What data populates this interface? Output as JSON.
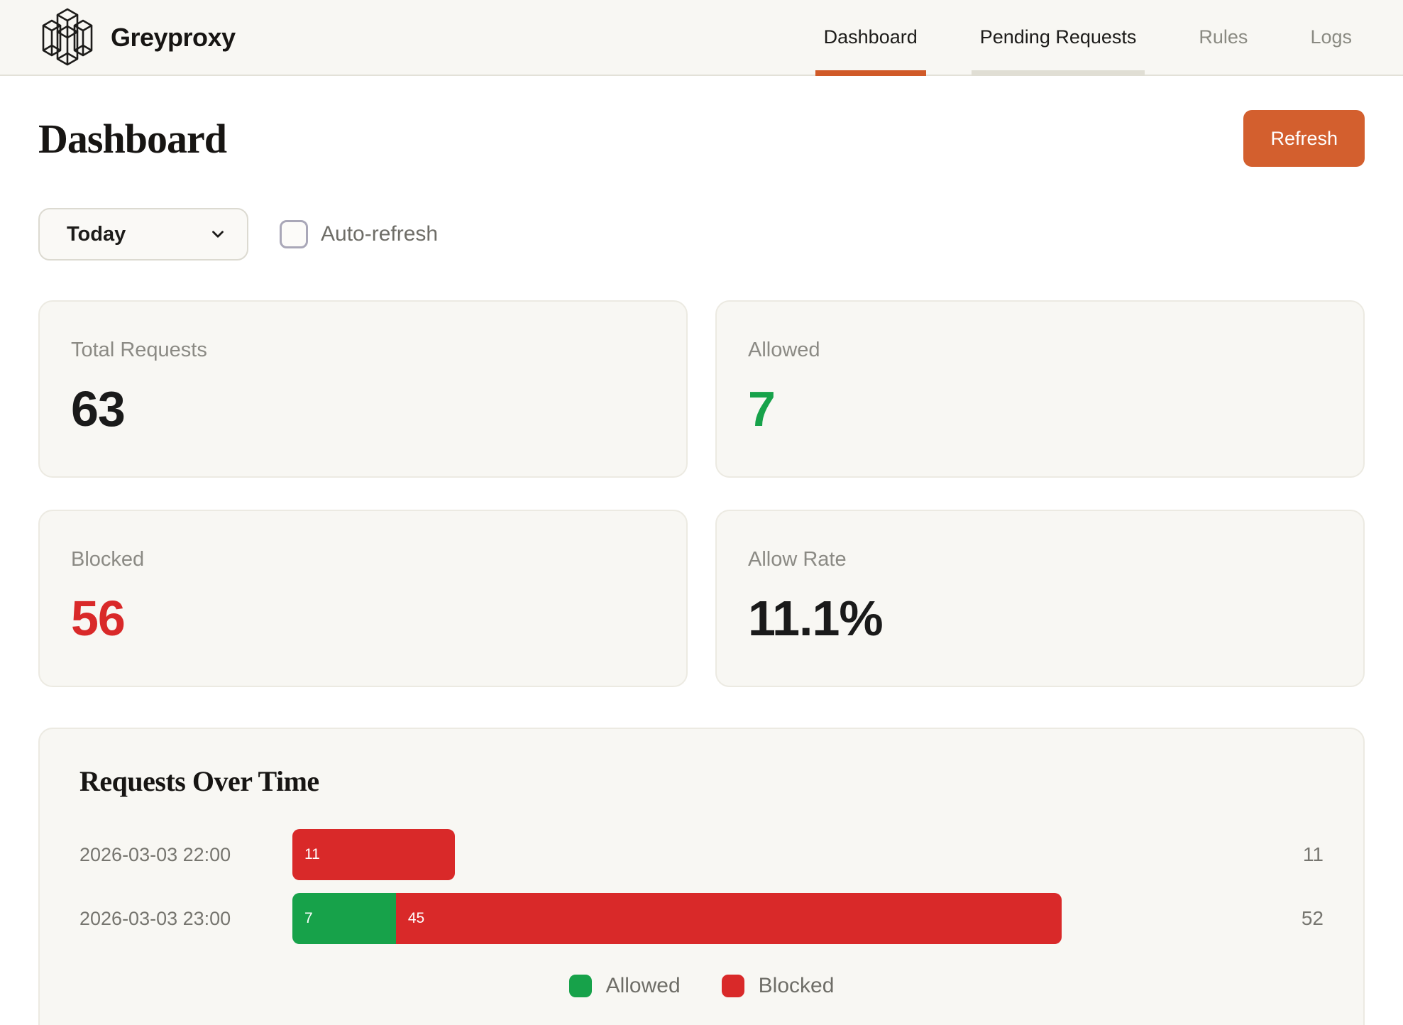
{
  "brand": {
    "name": "Greyproxy"
  },
  "nav": {
    "items": [
      {
        "label": "Dashboard",
        "state": "active"
      },
      {
        "label": "Pending Requests",
        "state": "hovered"
      },
      {
        "label": "Rules",
        "state": "default"
      },
      {
        "label": "Logs",
        "state": "default"
      }
    ]
  },
  "page": {
    "title": "Dashboard",
    "refresh_label": "Refresh"
  },
  "filters": {
    "range_selected": "Today",
    "auto_refresh_label": "Auto-refresh",
    "auto_refresh_checked": false
  },
  "stats": [
    {
      "label": "Total Requests",
      "value": "63",
      "color": "#1a1a1a"
    },
    {
      "label": "Allowed",
      "value": "7",
      "color": "#17a24a"
    },
    {
      "label": "Blocked",
      "value": "56",
      "color": "#d92929"
    },
    {
      "label": "Allow Rate",
      "value": "11.1%",
      "color": "#1a1a1a"
    }
  ],
  "colors": {
    "accent_orange": "#d35f2e",
    "allowed_green": "#17a24a",
    "blocked_red": "#d92929",
    "card_bg": "#f8f7f3",
    "header_bg": "#f8f7f3"
  },
  "chart_data": {
    "type": "bar",
    "orientation": "horizontal",
    "title": "Requests Over Time",
    "categories": [
      "2026-03-03 22:00",
      "2026-03-03 23:00"
    ],
    "series": [
      {
        "name": "Allowed",
        "color": "#17a24a",
        "values": [
          0,
          7
        ]
      },
      {
        "name": "Blocked",
        "color": "#d92929",
        "values": [
          11,
          45
        ]
      }
    ],
    "totals": [
      11,
      52
    ],
    "xmax": 63,
    "grid": false,
    "legend": [
      "Allowed",
      "Blocked"
    ],
    "legend_position": "bottom-center"
  }
}
